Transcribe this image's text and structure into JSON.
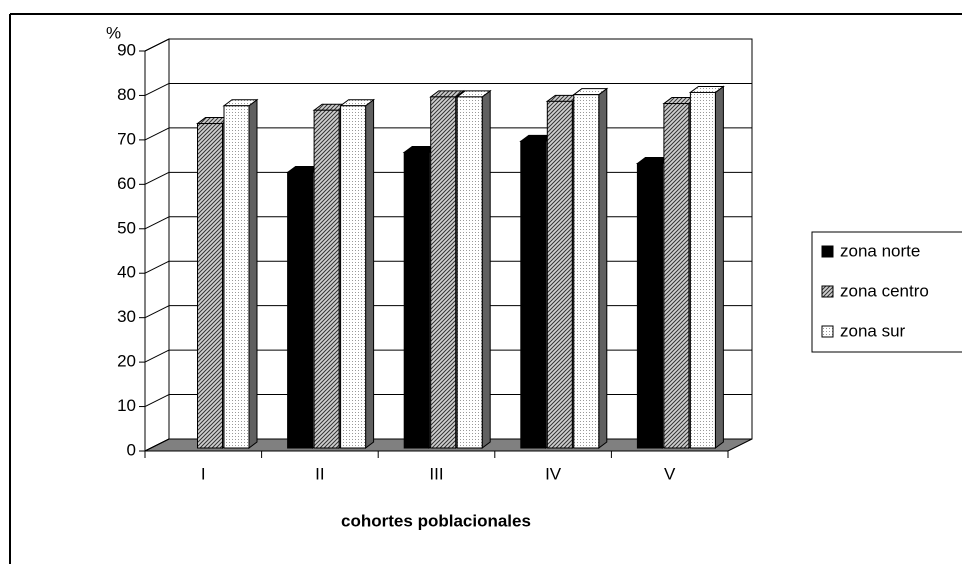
{
  "chart_data": {
    "type": "bar3d",
    "y_label": "%",
    "x_label": "cohortes poblacionales",
    "categories": [
      "I",
      "II",
      "III",
      "IV",
      "V"
    ],
    "series": [
      {
        "name": "zona norte",
        "color": "#000000",
        "pattern": "solid",
        "values": [
          null,
          62,
          66.5,
          69,
          64
        ]
      },
      {
        "name": "zona centro",
        "color": "#808080",
        "pattern": "hatch",
        "values": [
          73,
          76,
          79,
          78,
          77.5
        ]
      },
      {
        "name": "zona sur",
        "color": "#ffffff",
        "pattern": "dots",
        "values": [
          77,
          77,
          79,
          79.5,
          80
        ]
      }
    ],
    "ylim": [
      0,
      90
    ],
    "yticks": [
      0,
      10,
      20,
      30,
      40,
      50,
      60,
      70,
      80,
      90
    ],
    "grid": true,
    "legend": "right"
  }
}
